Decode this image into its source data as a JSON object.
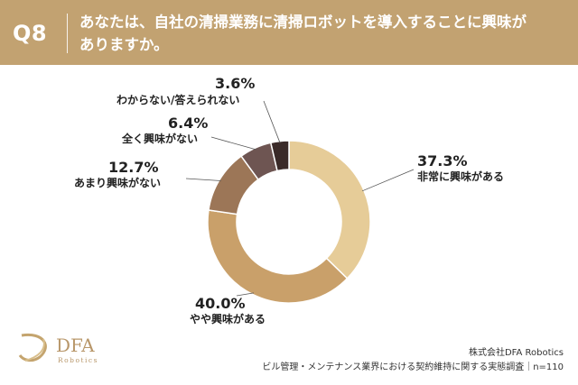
{
  "question": {
    "number": "Q8",
    "text_line1": "あなたは、自社の清掃業務に清掃ロボットを導入することに興味が",
    "text_line2": "ありますか。"
  },
  "colors": {
    "header": "#c2a271",
    "slices": [
      "#e6cc98",
      "#c9a06a",
      "#9c7657",
      "#6e5552",
      "#3a2a28"
    ]
  },
  "chart_data": {
    "type": "pie",
    "variant": "donut",
    "categories": [
      "非常に興味がある",
      "やや興味がある",
      "あまり興味がない",
      "全く興味がない",
      "わからない/答えられない"
    ],
    "values": [
      37.3,
      40.0,
      12.7,
      6.4,
      3.6
    ],
    "labels": [
      "37.3%",
      "40.0%",
      "12.7%",
      "6.4%",
      "3.6%"
    ]
  },
  "logo": {
    "name": "DFA",
    "sub": "Robotics"
  },
  "footer": {
    "company": "株式会社DFA Robotics",
    "survey": "ビル管理・メンテナンス業界における契約維持に関する実態調査｜n=110"
  }
}
